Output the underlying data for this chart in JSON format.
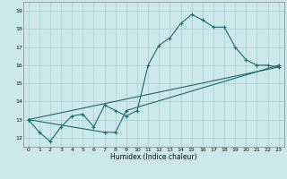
{
  "title": "",
  "xlabel": "Humidex (Indice chaleur)",
  "ylabel": "",
  "bg_color": "#cce8ea",
  "grid_color": "#aacfd2",
  "line_color": "#1a6b6b",
  "xlim": [
    -0.5,
    23.5
  ],
  "ylim": [
    11.5,
    19.5
  ],
  "xticks": [
    0,
    1,
    2,
    3,
    4,
    5,
    6,
    7,
    8,
    9,
    10,
    11,
    12,
    13,
    14,
    15,
    16,
    17,
    18,
    19,
    20,
    21,
    22,
    23
  ],
  "yticks": [
    12,
    13,
    14,
    15,
    16,
    17,
    18,
    19
  ],
  "line1_x": [
    0,
    1,
    2,
    3,
    4,
    5,
    6,
    7,
    8,
    9,
    10,
    11,
    12,
    13,
    14,
    15,
    16,
    17,
    18,
    19,
    20,
    21,
    22,
    23
  ],
  "line1_y": [
    13.0,
    12.3,
    11.8,
    12.6,
    13.2,
    13.3,
    12.6,
    13.8,
    13.5,
    13.2,
    13.5,
    16.0,
    17.1,
    17.5,
    18.3,
    18.8,
    18.5,
    18.1,
    18.1,
    17.0,
    16.3,
    16.0,
    16.0,
    15.9
  ],
  "line2_x": [
    0,
    7,
    8,
    9,
    23
  ],
  "line2_y": [
    13.0,
    12.3,
    12.3,
    13.5,
    16.0
  ],
  "line3_x": [
    0,
    23
  ],
  "line3_y": [
    13.0,
    15.9
  ]
}
